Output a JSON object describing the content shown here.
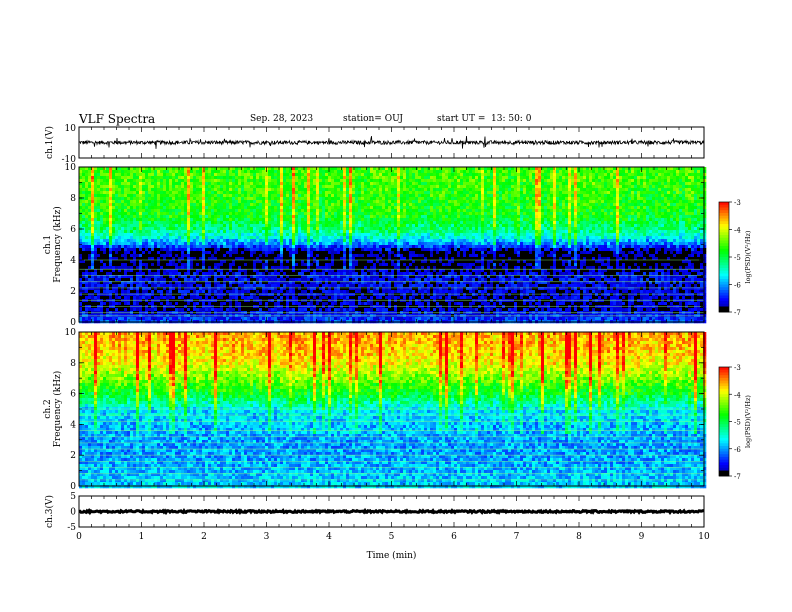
{
  "header": {
    "title": "VLF Spectra",
    "date": "Sep. 28, 2023",
    "station": "station= OUJ",
    "start_label": "start  UT =",
    "start_time": "13: 50: 0"
  },
  "colors": {
    "background": "#ffffff",
    "axis": "#000000",
    "trace": "#000000",
    "colormap": [
      "#000000",
      "#00008c",
      "#0000ff",
      "#0080ff",
      "#00ffff",
      "#00ff80",
      "#00ff00",
      "#80ff00",
      "#ffff00",
      "#ff8000",
      "#ff0000",
      "#e0e0e0",
      "#ffffff"
    ]
  },
  "chart_data": [
    {
      "type": "line",
      "panel": "ch1_waveform",
      "ylabel": "ch.1(V)",
      "ylim": [
        -10,
        10
      ],
      "yticks": [
        "10",
        "-10"
      ],
      "xlim": [
        0,
        10
      ],
      "x_unit": "min",
      "series": [
        {
          "description_values": {
            "baseline": 0,
            "typical_amplitude": 1.2,
            "spike_amplitude": 3.5
          }
        }
      ]
    },
    {
      "type": "heatmap",
      "panel": "ch1_spectrogram",
      "ylabel_line1": "ch.1",
      "ylabel_line2": "Frequency (kHz)",
      "ylim": [
        0,
        10
      ],
      "yticks": [
        "0",
        "2",
        "4",
        "6",
        "8",
        "10"
      ],
      "xlim": [
        0,
        10
      ],
      "colorbar": {
        "label": "log(PSD)(V²/Hz)",
        "range": [
          -7,
          -3
        ],
        "ticks": [
          "-3",
          "-4",
          "-5",
          "-6",
          "-7"
        ]
      },
      "profile": [
        [
          0.0,
          -6.3
        ],
        [
          0.5,
          -6.5
        ],
        [
          1.0,
          -6.8
        ],
        [
          2.0,
          -6.7
        ],
        [
          3.0,
          -6.6
        ],
        [
          3.5,
          -6.9
        ],
        [
          4.0,
          -7.0
        ],
        [
          4.6,
          -6.9
        ],
        [
          5.0,
          -6.2
        ],
        [
          5.5,
          -5.6
        ],
        [
          6.0,
          -5.2
        ],
        [
          7.0,
          -4.8
        ],
        [
          8.0,
          -4.7
        ],
        [
          9.0,
          -4.6
        ],
        [
          10.0,
          -4.6
        ]
      ],
      "lines_khz": [
        0.4,
        0.6,
        1.0,
        1.4,
        1.8,
        2.2,
        2.6,
        3.0,
        3.4,
        4.0
      ]
    },
    {
      "type": "heatmap",
      "panel": "ch2_spectrogram",
      "ylabel_line1": "ch.2",
      "ylabel_line2": "Frequency (kHz)",
      "ylim": [
        0,
        10
      ],
      "yticks": [
        "0",
        "2",
        "4",
        "6",
        "8",
        "10"
      ],
      "xlim": [
        0,
        10
      ],
      "colorbar": {
        "label": "log(PSD)(V²/Hz)",
        "range": [
          -7,
          -3
        ],
        "ticks": [
          "-3",
          "-4",
          "-5",
          "-6",
          "-7"
        ]
      },
      "profile": [
        [
          0.0,
          -5.8
        ],
        [
          1.0,
          -5.9
        ],
        [
          2.0,
          -6.0
        ],
        [
          3.0,
          -6.0
        ],
        [
          4.0,
          -5.9
        ],
        [
          5.0,
          -5.7
        ],
        [
          5.5,
          -5.3
        ],
        [
          6.0,
          -4.9
        ],
        [
          7.0,
          -4.4
        ],
        [
          8.0,
          -3.9
        ],
        [
          9.0,
          -3.7
        ],
        [
          10.0,
          -3.6
        ]
      ],
      "lines_khz": [
        0.4,
        0.8,
        1.2,
        1.6,
        2.0,
        2.4,
        2.8,
        3.2,
        3.6,
        4.2,
        4.6,
        5.0
      ]
    },
    {
      "type": "line",
      "panel": "ch3_waveform",
      "ylabel": "ch.3(V)",
      "ylim": [
        -5,
        5
      ],
      "yticks": [
        "5",
        "0",
        "-5"
      ],
      "xlim": [
        0,
        10
      ],
      "xlabel": "Time (min)",
      "xticks": [
        "0",
        "1",
        "2",
        "3",
        "4",
        "5",
        "6",
        "7",
        "8",
        "9",
        "10"
      ],
      "series": [
        {
          "description_values": {
            "baseline": 0,
            "typical_amplitude": 0.3
          }
        }
      ]
    }
  ]
}
